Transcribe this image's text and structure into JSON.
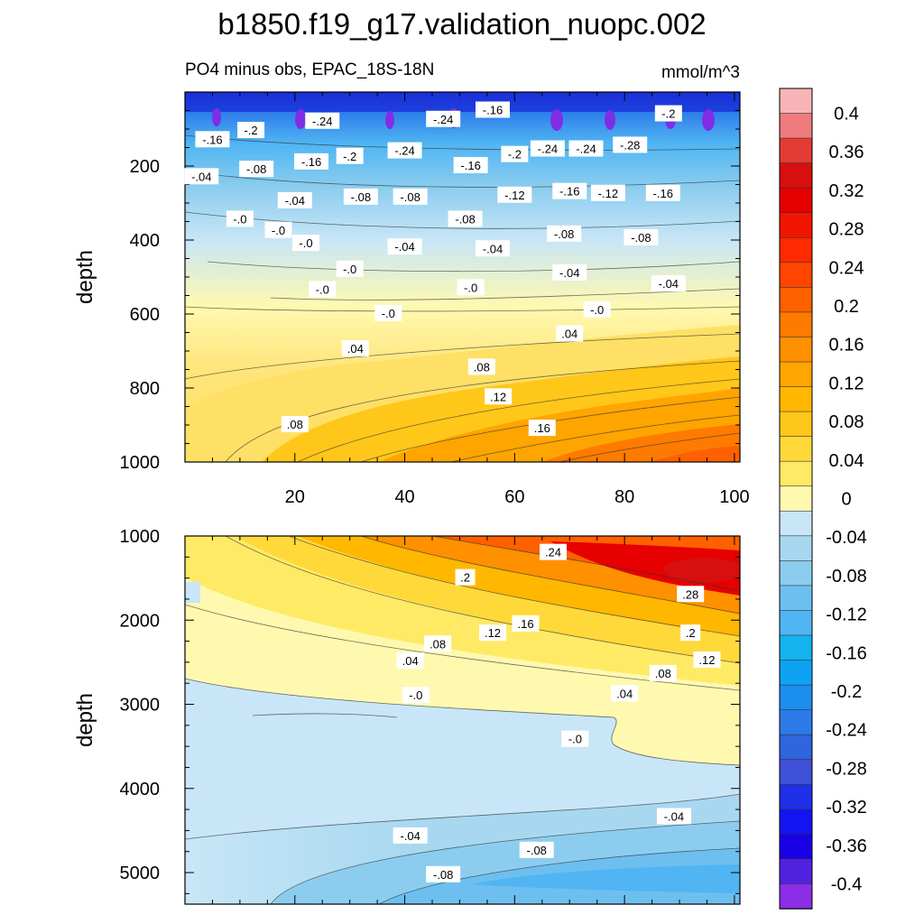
{
  "title": "b1850.f19_g17.validation_nuopc.002",
  "chart_data": {
    "type": "contour",
    "subtitle_left": "PO4 minus obs, EPAC_18S-18N",
    "subtitle_right": "mmol/m^3",
    "x_tick_labels": [
      "20",
      "40",
      "60",
      "80",
      "100"
    ],
    "x_ticks": [
      20,
      40,
      60,
      80,
      100
    ],
    "xlim": [
      0,
      101
    ],
    "colorbar": {
      "labels": [
        "0.4",
        "0.36",
        "0.32",
        "0.28",
        "0.24",
        "0.2",
        "0.16",
        "0.12",
        "0.08",
        "0.04",
        "0",
        "-0.04",
        "-0.08",
        "-0.12",
        "-0.16",
        "-0.2",
        "-0.24",
        "-0.28",
        "-0.32",
        "-0.36",
        "-0.4"
      ],
      "colors": [
        "#f6b4b6",
        "#ee7b7e",
        "#e53b35",
        "#d70f0f",
        "#e60000",
        "#f21600",
        "#ff2a00",
        "#ff4500",
        "#ff6000",
        "#ff7b00",
        "#ff9000",
        "#ffa500",
        "#ffb700",
        "#ffc71a",
        "#ffd93a",
        "#ffea66",
        "#fff9b0",
        "#c8e6f7",
        "#a8d8f0",
        "#8ccdef",
        "#6dbff0",
        "#50b5f2",
        "#12b3ef",
        "#0da3f2",
        "#1c8ef0",
        "#2c7aea",
        "#3065e0",
        "#3f51d8",
        "#2030e8",
        "#1414f0",
        "#1a00e6",
        "#5022e0",
        "#8b2ee6"
      ]
    },
    "panels": [
      {
        "name": "upper",
        "ylabel": "depth",
        "ylim": [
          0,
          1000
        ],
        "y_tick_labels": [
          "200",
          "400",
          "600",
          "800",
          "1000"
        ],
        "y_ticks": [
          200,
          400,
          600,
          800,
          1000
        ],
        "contour_labels": [
          {
            "text": "-.16",
            "x": 5,
            "y": 130
          },
          {
            "text": "-.2",
            "x": 12,
            "y": 105
          },
          {
            "text": "-.24",
            "x": 25,
            "y": 80
          },
          {
            "text": "-.2",
            "x": 30,
            "y": 175
          },
          {
            "text": "-.24",
            "x": 40,
            "y": 160
          },
          {
            "text": "-.24",
            "x": 47,
            "y": 75
          },
          {
            "text": "-.16",
            "x": 56,
            "y": 50
          },
          {
            "text": "-.2",
            "x": 60,
            "y": 170
          },
          {
            "text": "-.24",
            "x": 66,
            "y": 155
          },
          {
            "text": "-.24",
            "x": 73,
            "y": 155
          },
          {
            "text": "-.28",
            "x": 81,
            "y": 145
          },
          {
            "text": "-.2",
            "x": 88,
            "y": 60
          },
          {
            "text": "-.16",
            "x": 23,
            "y": 190
          },
          {
            "text": "-.08",
            "x": 13,
            "y": 210
          },
          {
            "text": "-.04",
            "x": 3,
            "y": 230
          },
          {
            "text": "-.04",
            "x": 20,
            "y": 295
          },
          {
            "text": "-.08",
            "x": 32,
            "y": 285
          },
          {
            "text": "-.08",
            "x": 41,
            "y": 285
          },
          {
            "text": "-.16",
            "x": 52,
            "y": 200
          },
          {
            "text": "-.12",
            "x": 60,
            "y": 280
          },
          {
            "text": "-.16",
            "x": 70,
            "y": 270
          },
          {
            "text": "-.12",
            "x": 77,
            "y": 275
          },
          {
            "text": "-.16",
            "x": 87,
            "y": 275
          },
          {
            "text": "-.0",
            "x": 10,
            "y": 345
          },
          {
            "text": "-.0",
            "x": 17,
            "y": 375
          },
          {
            "text": "-.0",
            "x": 22,
            "y": 410
          },
          {
            "text": "-.08",
            "x": 51,
            "y": 345
          },
          {
            "text": "-.04",
            "x": 40,
            "y": 420
          },
          {
            "text": "-.08",
            "x": 69,
            "y": 385
          },
          {
            "text": "-.08",
            "x": 83,
            "y": 395
          },
          {
            "text": "-.04",
            "x": 56,
            "y": 425
          },
          {
            "text": "-.0",
            "x": 30,
            "y": 480
          },
          {
            "text": "-.0",
            "x": 25,
            "y": 535
          },
          {
            "text": "-.0",
            "x": 37,
            "y": 600
          },
          {
            "text": "-.0",
            "x": 52,
            "y": 530
          },
          {
            "text": "-.04",
            "x": 70,
            "y": 490
          },
          {
            "text": "-.04",
            "x": 88,
            "y": 520
          },
          {
            "text": "-.0",
            "x": 75,
            "y": 590
          },
          {
            "text": ".04",
            "x": 31,
            "y": 695
          },
          {
            "text": ".04",
            "x": 70,
            "y": 655
          },
          {
            "text": ".08",
            "x": 54,
            "y": 745
          },
          {
            "text": ".12",
            "x": 57,
            "y": 825
          },
          {
            "text": ".08",
            "x": 20,
            "y": 900
          },
          {
            "text": ".16",
            "x": 65,
            "y": 910
          }
        ]
      },
      {
        "name": "lower",
        "ylabel": "depth",
        "ylim": [
          1000,
          5375
        ],
        "y_tick_labels": [
          "1000",
          "2000",
          "3000",
          "4000",
          "5000"
        ],
        "y_ticks": [
          1000,
          2000,
          3000,
          4000,
          5000
        ],
        "contour_labels": [
          {
            "text": ".24",
            "x": 67,
            "y": 1200
          },
          {
            "text": ".2",
            "x": 51,
            "y": 1500
          },
          {
            "text": ".28",
            "x": 92,
            "y": 1700
          },
          {
            "text": ".16",
            "x": 62,
            "y": 2050
          },
          {
            "text": ".12",
            "x": 56,
            "y": 2160
          },
          {
            "text": ".2",
            "x": 92,
            "y": 2160
          },
          {
            "text": ".08",
            "x": 46,
            "y": 2290
          },
          {
            "text": ".04",
            "x": 41,
            "y": 2490
          },
          {
            "text": ".12",
            "x": 95,
            "y": 2480
          },
          {
            "text": ".08",
            "x": 87,
            "y": 2640
          },
          {
            "text": "-.0",
            "x": 42,
            "y": 2900
          },
          {
            "text": ".04",
            "x": 80,
            "y": 2880
          },
          {
            "text": "-.0",
            "x": 71,
            "y": 3420
          },
          {
            "text": "-.04",
            "x": 89,
            "y": 4340
          },
          {
            "text": "-.04",
            "x": 41,
            "y": 4570
          },
          {
            "text": "-.08",
            "x": 64,
            "y": 4740
          },
          {
            "text": "-.08",
            "x": 47,
            "y": 5030
          }
        ]
      }
    ]
  }
}
